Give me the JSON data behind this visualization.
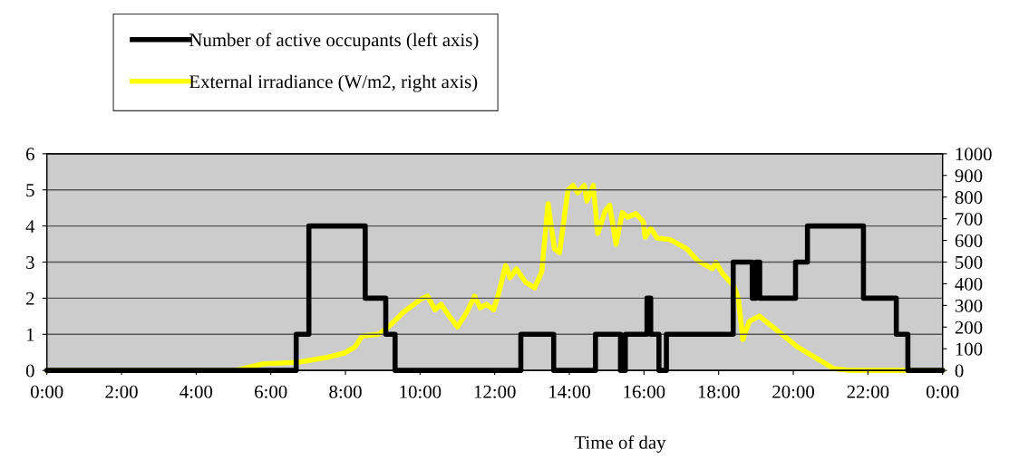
{
  "chart_data": {
    "type": "line",
    "xlabel": "Time of day",
    "xlim": [
      0,
      24
    ],
    "xticks": [
      {
        "value": 0,
        "label": "0:00"
      },
      {
        "value": 2,
        "label": "2:00"
      },
      {
        "value": 4,
        "label": "4:00"
      },
      {
        "value": 6,
        "label": "6:00"
      },
      {
        "value": 8,
        "label": "8:00"
      },
      {
        "value": 10,
        "label": "10:00"
      },
      {
        "value": 12,
        "label": "12:00"
      },
      {
        "value": 14,
        "label": "14:00"
      },
      {
        "value": 16,
        "label": "16:00"
      },
      {
        "value": 18,
        "label": "18:00"
      },
      {
        "value": 20,
        "label": "20:00"
      },
      {
        "value": 22,
        "label": "22:00"
      },
      {
        "value": 24,
        "label": "0:00"
      }
    ],
    "ylim": [
      0,
      6
    ],
    "yticks": [
      0,
      1,
      2,
      3,
      4,
      5,
      6
    ],
    "y2lim": [
      0,
      1000
    ],
    "y2ticks": [
      0,
      100,
      200,
      300,
      400,
      500,
      600,
      700,
      800,
      900,
      1000
    ],
    "grid": "y",
    "legend": "top left",
    "marker": "none",
    "line_style": "solid",
    "series": [
      {
        "name": "Number of active occupants (left axis)",
        "type": "step",
        "color": "#000000",
        "x": [
          0,
          6.68,
          7.02,
          8.53,
          9.08,
          9.33,
          12.7,
          13.58,
          14.7,
          15.37,
          15.5,
          16.08,
          16.18,
          16.4,
          16.6,
          18.39,
          18.9,
          19.0,
          19.1,
          20.06,
          20.38,
          21.88,
          22.76,
          23.07,
          24
        ],
        "values": [
          0,
          1,
          4,
          2,
          1,
          0,
          1,
          0,
          1,
          0,
          1,
          2,
          1,
          0,
          1,
          3,
          2,
          3,
          2,
          3,
          4,
          2,
          1,
          0,
          0
        ]
      },
      {
        "name": "External irradiance (W/m2, right axis)",
        "axis": "y2",
        "color": "#ffff00",
        "x": [
          0,
          5.05,
          5.78,
          6.75,
          7.48,
          7.97,
          8.26,
          8.45,
          8.89,
          9.18,
          9.55,
          10.03,
          10.2,
          10.4,
          10.56,
          10.8,
          11.0,
          11.25,
          11.46,
          11.61,
          11.78,
          11.97,
          12.1,
          12.29,
          12.41,
          12.58,
          12.83,
          13.07,
          13.26,
          13.43,
          13.6,
          13.74,
          13.96,
          14.1,
          14.22,
          14.4,
          14.47,
          14.64,
          14.76,
          14.96,
          15.08,
          15.25,
          15.42,
          15.56,
          15.78,
          15.98,
          16.03,
          16.18,
          16.35,
          16.71,
          17.15,
          17.44,
          17.83,
          17.93,
          18.1,
          18.41,
          18.53,
          18.65,
          18.82,
          19.09,
          19.57,
          20.11,
          20.72,
          21.08,
          21.57,
          24
        ],
        "values": [
          0,
          0,
          30,
          38,
          59,
          80,
          109,
          159,
          167,
          205,
          268,
          330,
          343,
          280,
          305,
          247,
          201,
          268,
          343,
          289,
          305,
          280,
          351,
          485,
          427,
          469,
          406,
          381,
          456,
          770,
          561,
          544,
          833,
          854,
          820,
          854,
          782,
          854,
          632,
          736,
          762,
          582,
          728,
          707,
          724,
          686,
          615,
          657,
          611,
          603,
          561,
          506,
          469,
          498,
          448,
          389,
          330,
          142,
          226,
          251,
          184,
          109,
          46,
          8,
          0,
          0
        ]
      }
    ]
  }
}
